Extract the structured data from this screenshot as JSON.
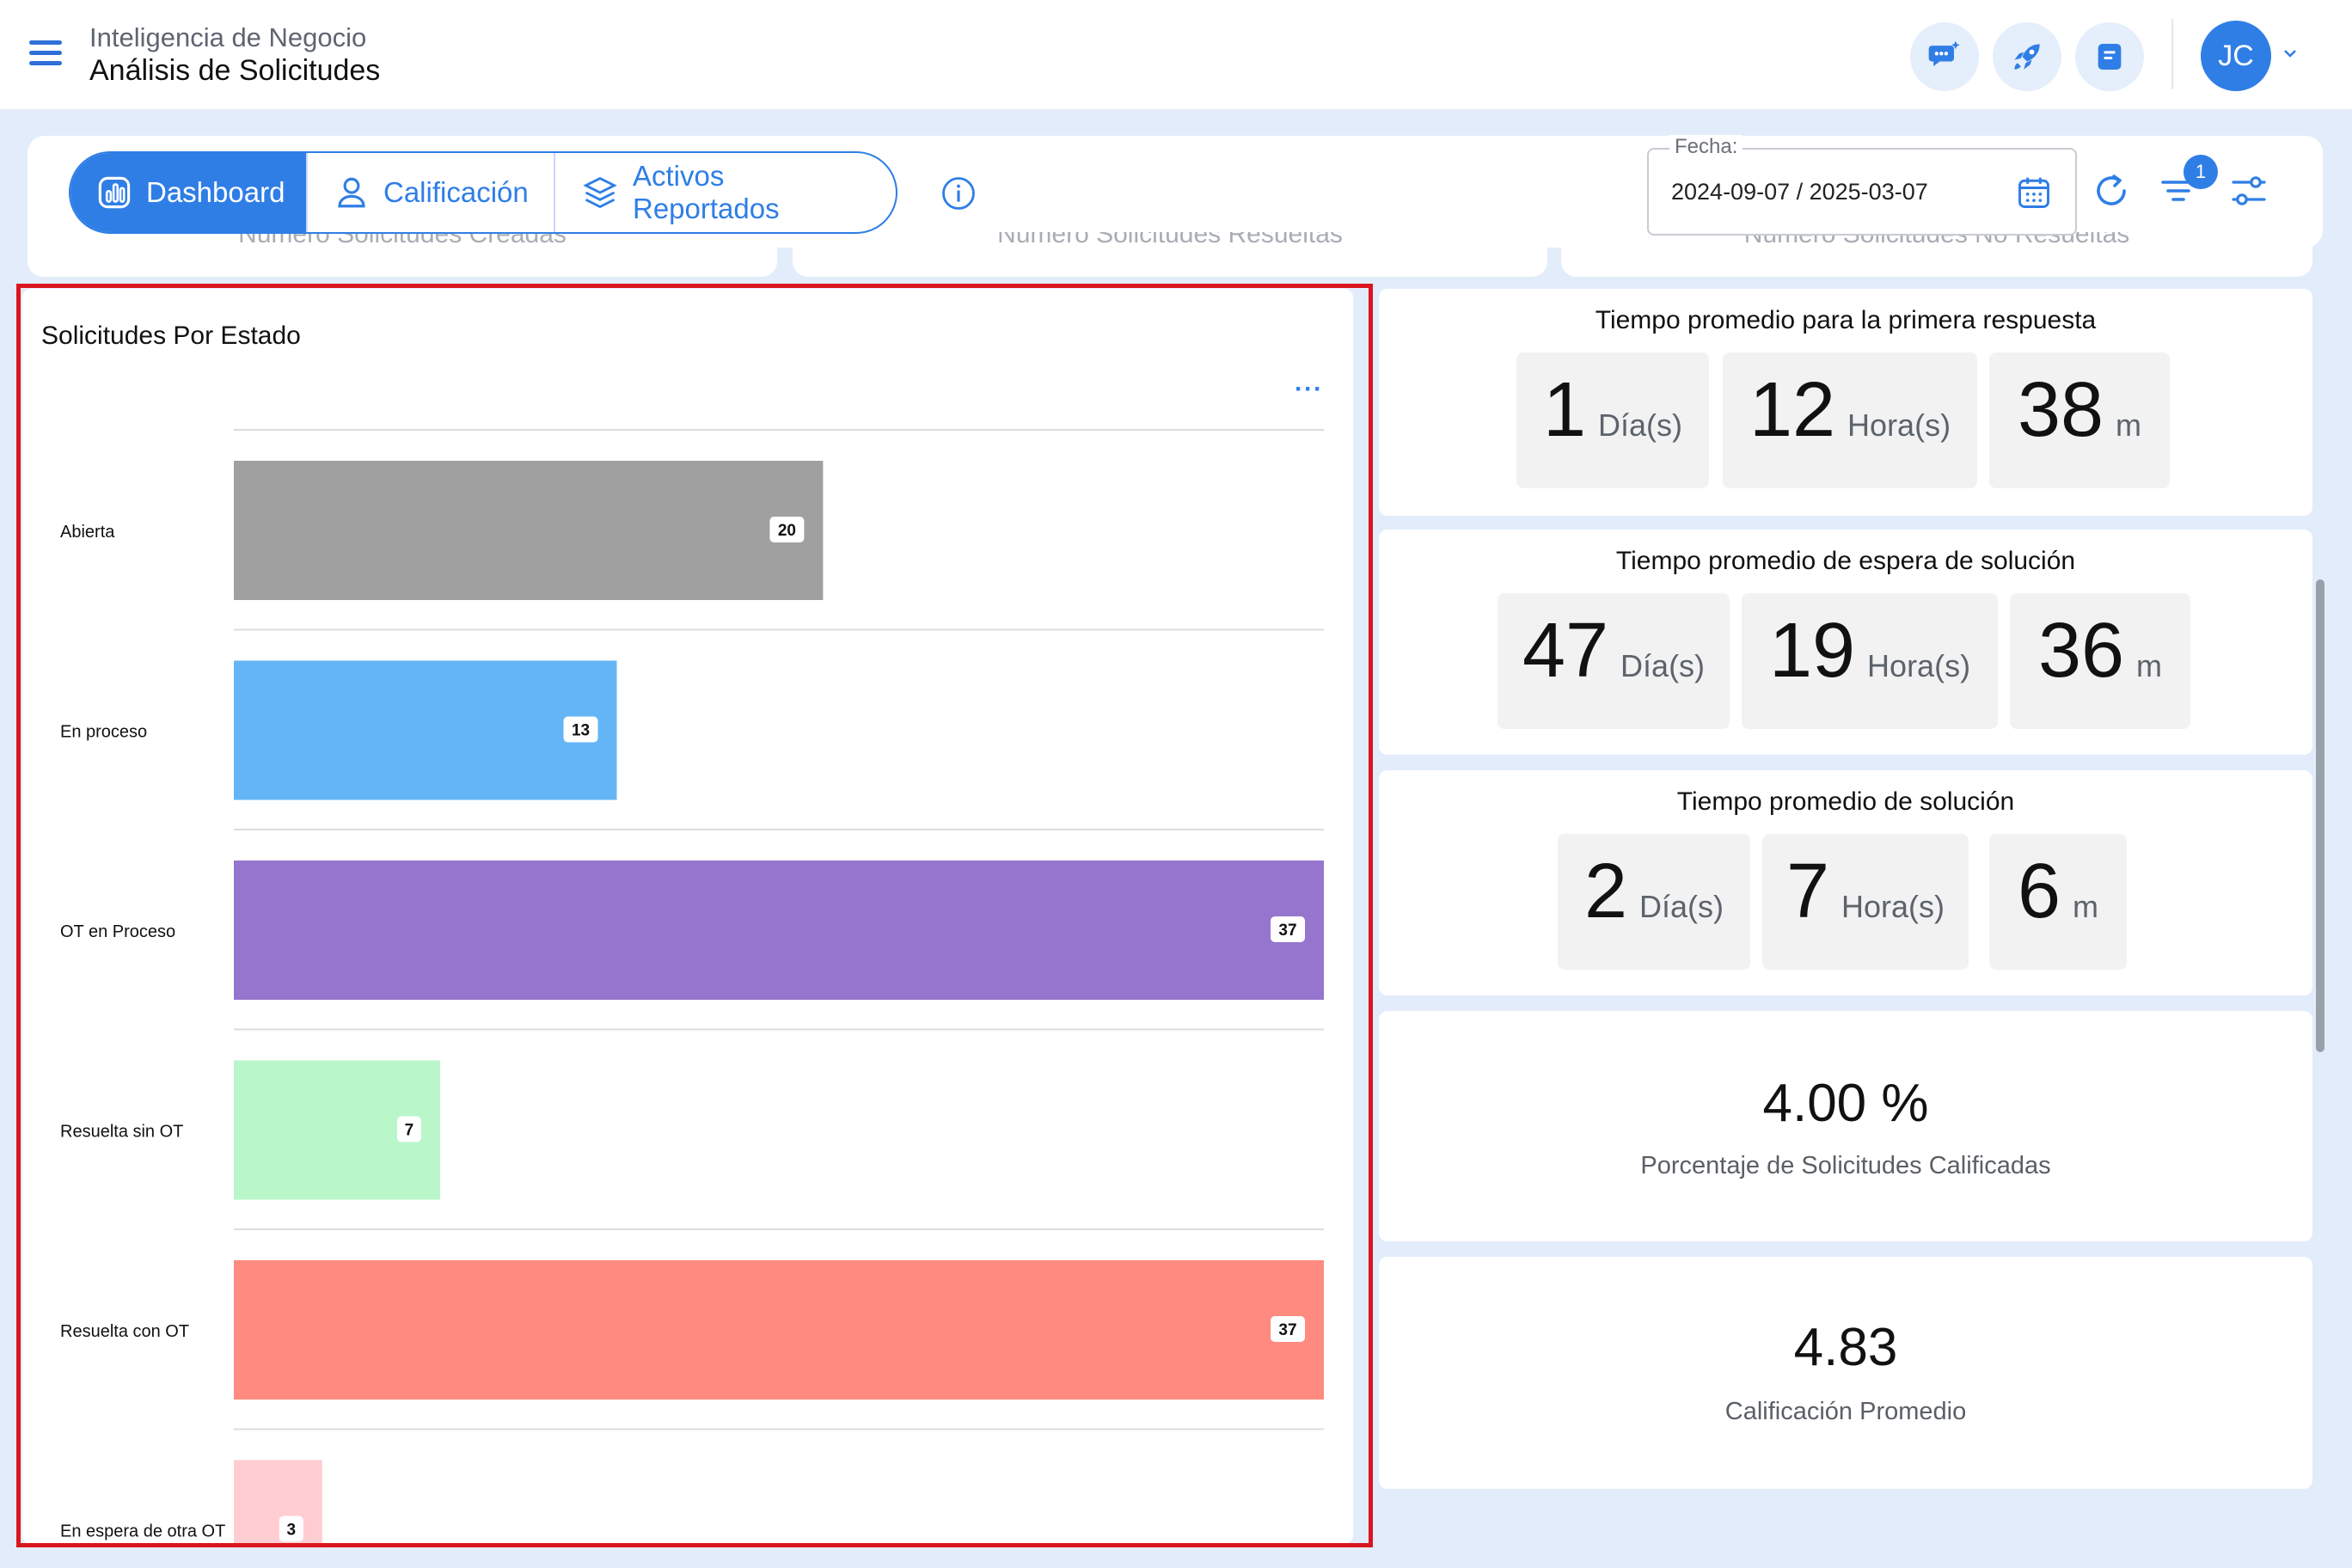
{
  "header": {
    "app_subtitle": "Inteligencia de Negocio",
    "app_title": "Análisis de Solicitudes",
    "user_initials": "JC"
  },
  "tabs": [
    {
      "label": "Dashboard",
      "icon": "chart-icon",
      "active": true
    },
    {
      "label": "Calificación",
      "icon": "person-icon",
      "active": false
    },
    {
      "label": "Activos Reportados",
      "icon": "layers-icon",
      "active": false
    }
  ],
  "filters": {
    "date_label": "Fecha:",
    "date_value": "2024-09-07 / 2025-03-07",
    "filter_count": "1"
  },
  "summary_strip": [
    "Número Solicitudes Creadas",
    "Número Solicitudes Resueltas",
    "Número Solicitudes No Resueltas"
  ],
  "chart_data": {
    "type": "bar",
    "orientation": "horizontal",
    "title": "Solicitudes Por Estado",
    "categories": [
      "Abierta",
      "En proceso",
      "OT en Proceso",
      "Resuelta sin OT",
      "Resuelta con OT",
      "En espera de otra OT"
    ],
    "values": [
      20,
      13,
      37,
      7,
      37,
      3
    ],
    "colors": [
      "#a0a0a0",
      "#64b5f6",
      "#9575cd",
      "#b9f6ca",
      "#ff8a80",
      "#ffcdd2"
    ],
    "xlim": [
      0,
      37
    ],
    "menu_label": "···"
  },
  "stats": {
    "first_response": {
      "title": "Tiempo promedio para la primera respuesta",
      "days": "1",
      "hours": "12",
      "minutes": "38"
    },
    "wait_solution": {
      "title": "Tiempo promedio de espera de solución",
      "days": "47",
      "hours": "19",
      "minutes": "36"
    },
    "solution": {
      "title": "Tiempo promedio de solución",
      "days": "2",
      "hours": "7",
      "minutes": "6"
    },
    "units": {
      "days": "Día(s)",
      "hours": "Hora(s)",
      "minutes": "m"
    },
    "rated_percentage": {
      "value": "4.00 %",
      "label": "Porcentaje de Solicitudes Calificadas"
    },
    "average_rating": {
      "value": "4.83",
      "label": "Calificación Promedio"
    }
  },
  "colors": {
    "accent": "#2f7ee6",
    "page_bg": "#e3ecfb",
    "highlight": "#d9161f"
  }
}
